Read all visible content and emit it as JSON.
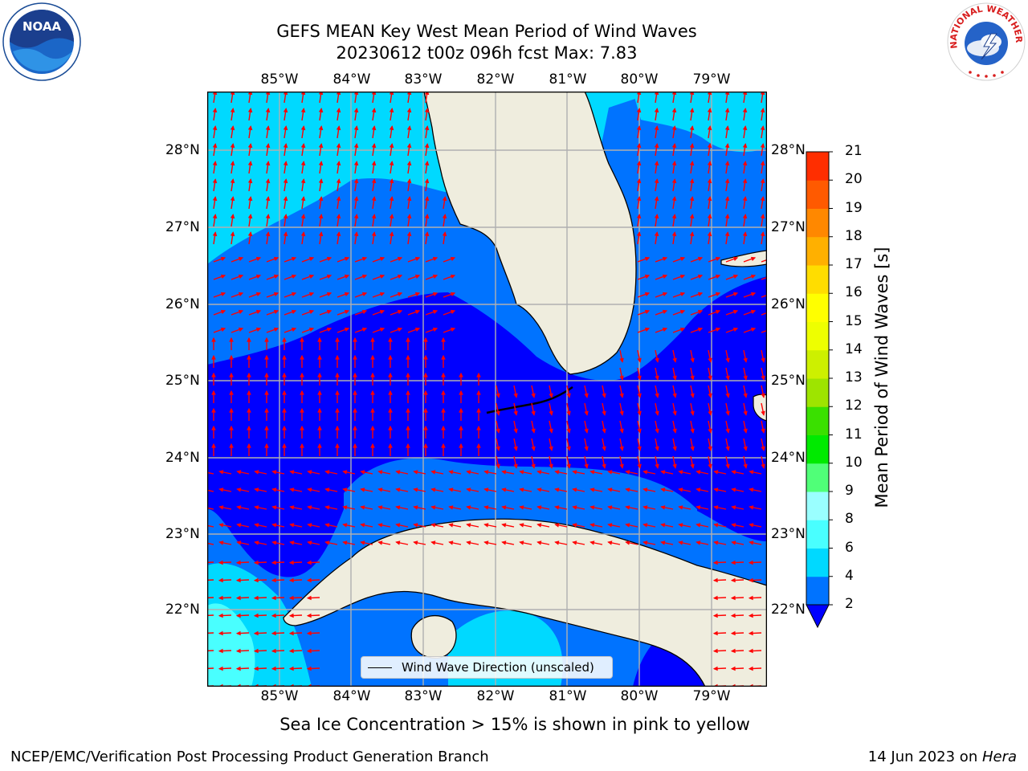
{
  "header": {
    "title_line1": "GEFS MEAN Key West Mean Period of Wind Waves",
    "title_line2": "20230612 t00z 096h fcst   Max: 7.83"
  },
  "map": {
    "lon_labels": [
      "85°W",
      "84°W",
      "83°W",
      "82°W",
      "81°W",
      "80°W",
      "79°W"
    ],
    "lat_labels": [
      "28°N",
      "27°N",
      "26°N",
      "25°N",
      "24°N",
      "23°N",
      "22°N"
    ],
    "legend_label": "Wind Wave Direction (unscaled)",
    "arrow_color": "#ff0000",
    "land_color": "#efedde",
    "grid_color": "#b0b0b0"
  },
  "colorbar": {
    "title": "Mean Period of Wind Waves [s]",
    "ticks": [
      "2",
      "4",
      "6",
      "8",
      "9",
      "10",
      "11",
      "12",
      "13",
      "14",
      "15",
      "16",
      "17",
      "18",
      "19",
      "20",
      "21"
    ],
    "colors": [
      "#0000ff",
      "#0073ff",
      "#00d9ff",
      "#49ffff",
      "#9affff",
      "#50ff78",
      "#00ea00",
      "#3ae000",
      "#9ee400",
      "#cdf000",
      "#eeff00",
      "#ffff00",
      "#ffdd00",
      "#ffb000",
      "#ff8800",
      "#ff5a00",
      "#ff2e00",
      "#ff0000"
    ]
  },
  "logos": {
    "left_text": "NOAA",
    "right_text": "NATIONAL WEATHER SERVICE"
  },
  "bottom_note": "Sea Ice Concentration > 15% is shown in pink to yellow",
  "footer": {
    "left": "NCEP/EMC/Verification Post Processing Product Generation Branch",
    "right_prefix": "14 Jun 2023 on ",
    "right_host": "Hera"
  }
}
